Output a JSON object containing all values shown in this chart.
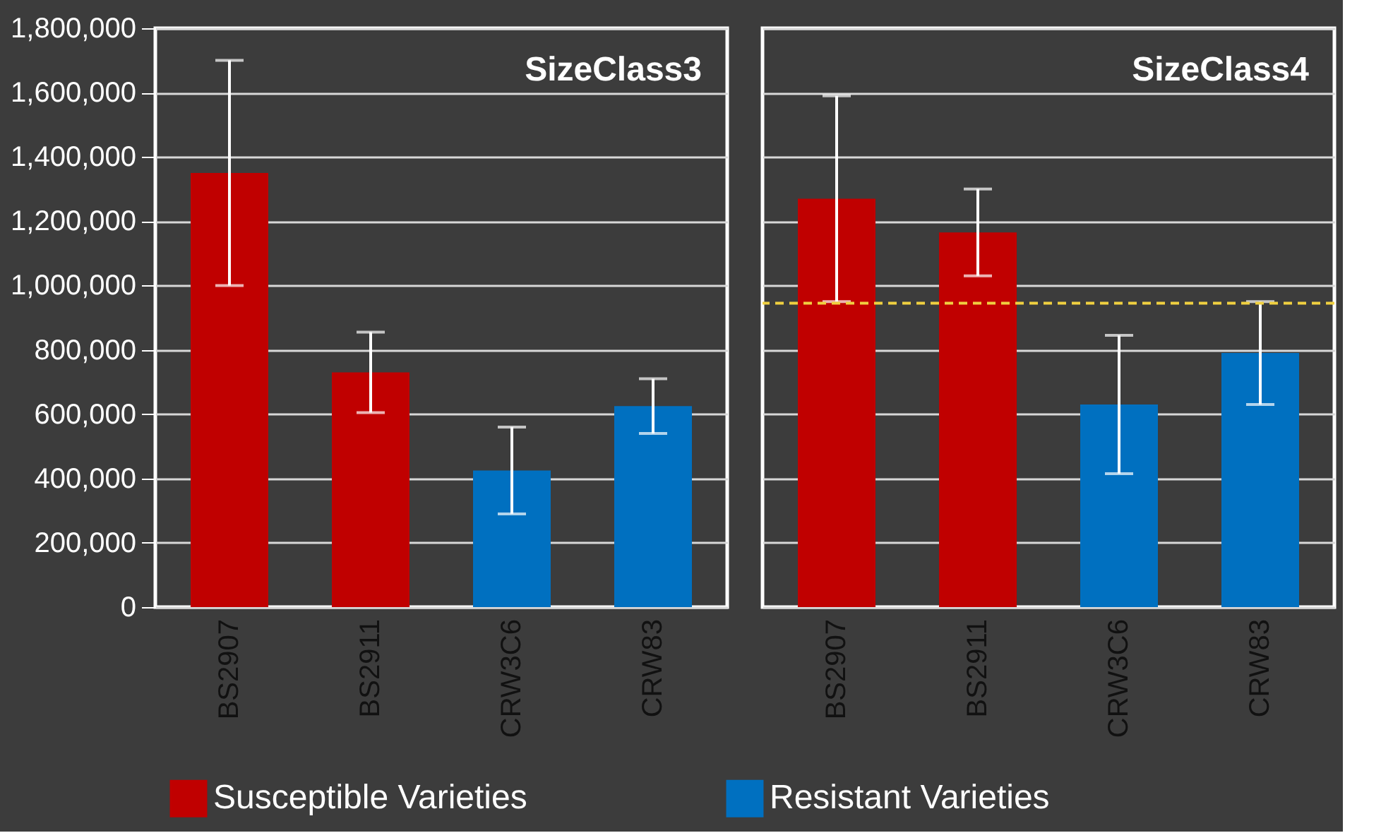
{
  "chart_data": [
    {
      "type": "bar",
      "title": "SizeClass3",
      "categories": [
        "BS2907",
        "BS2911",
        "CRW3C6",
        "CRW83"
      ],
      "series": [
        {
          "name": "Susceptible Varieties",
          "color": "#c00000",
          "values": [
            1350000,
            730000,
            null,
            null
          ],
          "errors": [
            350000,
            125000,
            null,
            null
          ]
        },
        {
          "name": "Resistant Varieties",
          "color": "#0070c0",
          "values": [
            null,
            null,
            425000,
            625000
          ],
          "errors": [
            null,
            null,
            135000,
            85000
          ]
        }
      ],
      "ylim": [
        0,
        1800000
      ],
      "yticks": [
        0,
        {
          "value": 200000,
          "label": "200,000"
        },
        {
          "value": 400000,
          "label": "400,000"
        },
        {
          "value": 600000,
          "label": "600,000"
        },
        {
          "value": 800000,
          "label": "800,000"
        },
        {
          "value": 1000000,
          "label": "1,000,000"
        },
        {
          "value": 1200000,
          "label": "1,200,000"
        },
        {
          "value": 1400000,
          "label": "1,400,000"
        },
        {
          "value": 1600000,
          "label": "1,600,000"
        },
        {
          "value": 1800000,
          "label": "1,800,000"
        }
      ],
      "grid": "y",
      "legend": "bottom"
    },
    {
      "type": "bar",
      "title": "SizeClass4",
      "categories": [
        "BS2907",
        "BS2911",
        "CRW3C6",
        "CRW83"
      ],
      "series": [
        {
          "name": "Susceptible Varieties",
          "color": "#c00000",
          "values": [
            1270000,
            1165000,
            null,
            null
          ],
          "errors": [
            320000,
            135000,
            null,
            null
          ]
        },
        {
          "name": "Resistant Varieties",
          "color": "#0070c0",
          "values": [
            null,
            null,
            630000,
            790000
          ],
          "errors": [
            null,
            null,
            215000,
            160000
          ]
        }
      ],
      "ylim": [
        0,
        1800000
      ],
      "yticks": [
        0,
        200000,
        400000,
        600000,
        800000,
        1000000,
        1200000,
        1400000,
        1600000,
        1800000
      ],
      "grid": "y",
      "legend": "bottom",
      "tick_labels": "x",
      "ref_lines": [
        {
          "axis": "y",
          "value": 945000,
          "color": "#f0d040",
          "line_style": "dashed"
        }
      ]
    }
  ]
}
